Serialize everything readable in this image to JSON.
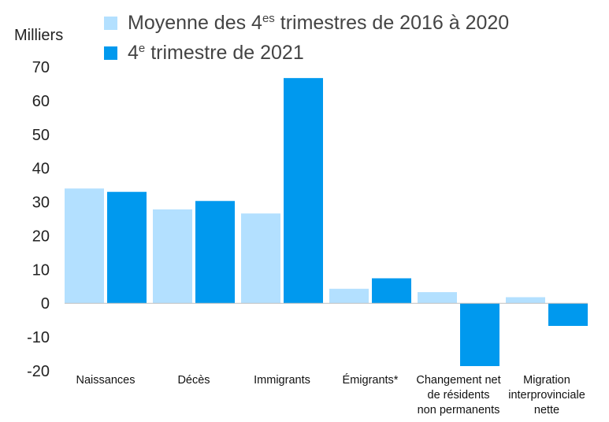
{
  "colors": {
    "series_0": "#b3e0ff",
    "series_1": "#0099ee",
    "zero_line": "#bfbfbf"
  },
  "chart_data": {
    "type": "bar",
    "ylabel": "Milliers",
    "ylim": [
      -20,
      70
    ],
    "yticks": [
      70,
      60,
      50,
      40,
      30,
      20,
      10,
      0,
      -10,
      -20
    ],
    "grid": false,
    "legend_position": "top",
    "categories": [
      [
        "Naissances"
      ],
      [
        "Décès"
      ],
      [
        "Immigrants"
      ],
      [
        "Émigrants*"
      ],
      [
        "Changement net",
        "de résidents",
        "non permanents"
      ],
      [
        "Migration",
        "interprovinciale",
        "nette"
      ]
    ],
    "series": [
      {
        "name_main": "Moyenne des 4",
        "name_sup": "es",
        "name_rest": " trimestres de 2016 à 2020",
        "values": [
          34,
          27.8,
          26.6,
          4.3,
          3.3,
          1.8
        ]
      },
      {
        "name_main": "4",
        "name_sup": "e",
        "name_rest": " trimestre de 2021",
        "values": [
          33,
          30.3,
          66.7,
          7.4,
          -18.6,
          -6.7
        ]
      }
    ]
  }
}
